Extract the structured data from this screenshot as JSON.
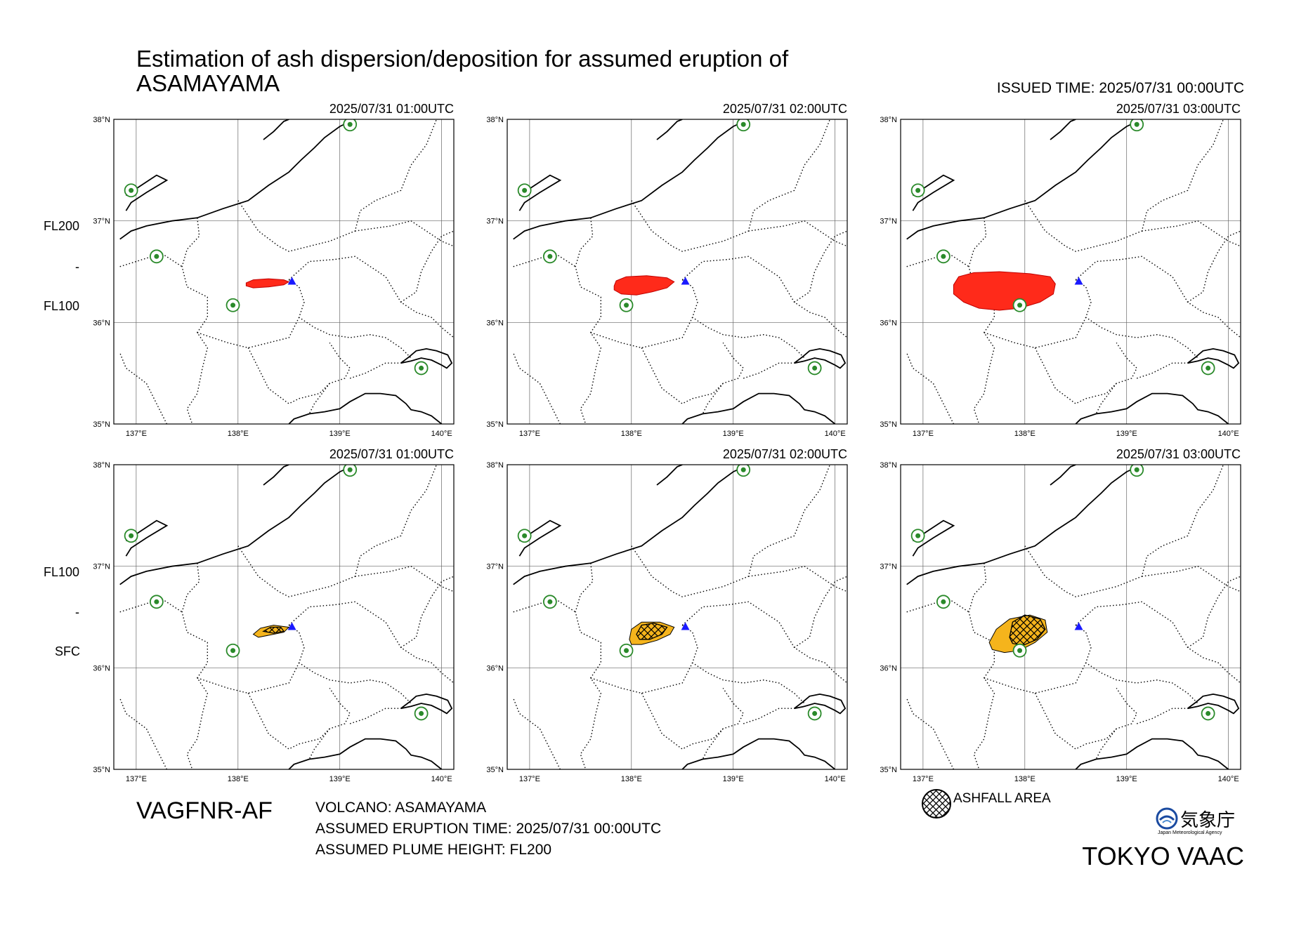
{
  "header": {
    "title_line1": "Estimation of ash dispersion/deposition for assumed eruption of",
    "title_line2": "ASAMAYAMA",
    "issued": "ISSUED TIME: 2025/07/31 00:00UTC"
  },
  "rows": [
    {
      "label_top": "FL200",
      "label_mid": "-",
      "label_bottom": "FL100"
    },
    {
      "label_top": "FL100",
      "label_mid": "-",
      "label_bottom": "SFC"
    }
  ],
  "panels": [
    {
      "time": "2025/07/31 01:00UTC",
      "layer": "FL200-FL100",
      "type": "ash",
      "color": "#ff2a1a",
      "hatch": false,
      "step": 1
    },
    {
      "time": "2025/07/31 02:00UTC",
      "layer": "FL200-FL100",
      "type": "ash",
      "color": "#ff2a1a",
      "hatch": false,
      "step": 2
    },
    {
      "time": "2025/07/31 03:00UTC",
      "layer": "FL200-FL100",
      "type": "ash",
      "color": "#ff2a1a",
      "hatch": false,
      "step": 3
    },
    {
      "time": "2025/07/31 01:00UTC",
      "layer": "FL100-SFC",
      "type": "ash+ashfall",
      "color": "#f5b41c",
      "hatch": true,
      "step": 1
    },
    {
      "time": "2025/07/31 02:00UTC",
      "layer": "FL100-SFC",
      "type": "ash+ashfall",
      "color": "#f5b41c",
      "hatch": true,
      "step": 2
    },
    {
      "time": "2025/07/31 03:00UTC",
      "layer": "FL100-SFC",
      "type": "ash+ashfall",
      "color": "#f5b41c",
      "hatch": true,
      "step": 3
    }
  ],
  "map": {
    "lon_ticks": [
      "137°E",
      "138°E",
      "139°E",
      "140°E"
    ],
    "lat_ticks": [
      "38°N",
      "37°N",
      "36°N",
      "35°N"
    ],
    "volcano": {
      "name": "ASAMAYAMA",
      "lat": 36.4,
      "lon": 138.53,
      "marker": "blue-triangle"
    },
    "airport_marker": "green-circle-star-icon"
  },
  "footer": {
    "code": "VAGFNR-AF",
    "volcano": "VOLCANO: ASAMAYAMA",
    "eruption_time": "ASSUMED ERUPTION TIME: 2025/07/31 00:00UTC",
    "plume_height": "ASSUMED PLUME HEIGHT: FL200",
    "legend": "ASHFALL AREA",
    "agency_jp": "気象庁",
    "agency_en": "Japan Meteorological Agency",
    "vaac": "TOKYO VAAC"
  }
}
